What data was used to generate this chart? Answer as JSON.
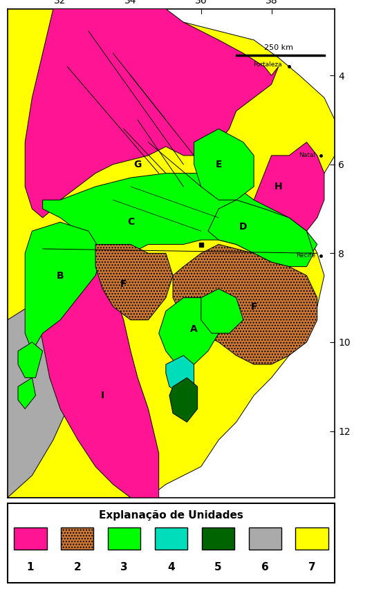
{
  "title": "Explanação de Unidades",
  "colors": {
    "pink": "#FF1493",
    "brown": "#CC7733",
    "green": "#00FF00",
    "cyan": "#00DDBB",
    "dark_green": "#006400",
    "gray": "#AAAAAA",
    "yellow": "#FFFF00",
    "black": "#000000",
    "white": "#FFFFFF"
  },
  "legend_labels": [
    "1",
    "2",
    "3",
    "4",
    "5",
    "6",
    "7"
  ],
  "legend_colors": [
    "#FF1493",
    "#CC7733",
    "#00FF00",
    "#00DDBB",
    "#006400",
    "#AAAAAA",
    "#FFFF00"
  ],
  "xlim": [
    30.5,
    39.8
  ],
  "ylim": [
    13.5,
    2.5
  ],
  "xticks": [
    32,
    34,
    36,
    38
  ],
  "yticks": [
    4,
    6,
    8,
    10,
    12
  ],
  "figsize": [
    5.38,
    8.52
  ],
  "dpi": 100
}
